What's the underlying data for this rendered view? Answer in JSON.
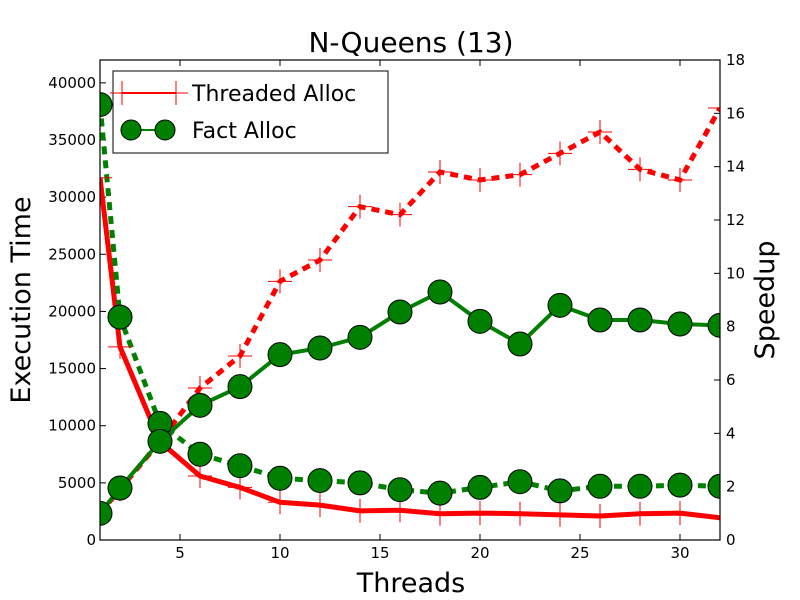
{
  "chart_data": {
    "type": "line",
    "title": "N-Queens (13)",
    "xlabel": "Threads",
    "ylabel_left": "Execution Time",
    "ylabel_right": "Speedup",
    "xlim": [
      1,
      32
    ],
    "ylim_left": [
      0,
      42000
    ],
    "ylim_right": [
      0,
      18
    ],
    "grid": false,
    "legend_position": "top-left",
    "x_ticks": [
      5,
      10,
      15,
      20,
      25,
      30
    ],
    "x_tick_labels": [
      "5",
      "10",
      "15",
      "20",
      "25",
      "30"
    ],
    "left_ticks": [
      0,
      5000,
      10000,
      15000,
      20000,
      25000,
      30000,
      35000,
      40000
    ],
    "left_tick_labels": [
      "0",
      "5000",
      "10000",
      "15000",
      "20000",
      "25000",
      "30000",
      "35000",
      "40000"
    ],
    "right_ticks": [
      0,
      2,
      4,
      6,
      8,
      10,
      12,
      14,
      16,
      18
    ],
    "right_tick_labels": [
      "0",
      "2",
      "4",
      "6",
      "8",
      "10",
      "12",
      "14",
      "16",
      "18"
    ],
    "x": [
      1,
      2,
      4,
      6,
      8,
      10,
      12,
      14,
      16,
      18,
      20,
      22,
      24,
      26,
      28,
      30,
      32
    ],
    "series": [
      {
        "name": "Threaded Alloc",
        "legend": true,
        "color": "#ff0000",
        "marker": "plus",
        "values_exec_time": [
          31700,
          16900,
          8600,
          5600,
          4600,
          3300,
          3050,
          2550,
          2600,
          2300,
          2350,
          2300,
          2200,
          2100,
          2300,
          2350,
          1950
        ],
        "values_speedup": [
          1.0,
          1.9,
          3.7,
          5.7,
          6.9,
          9.7,
          10.5,
          12.5,
          12.2,
          13.8,
          13.5,
          13.7,
          14.5,
          15.3,
          13.9,
          13.5,
          16.2
        ]
      },
      {
        "name": "Fact Alloc",
        "legend": true,
        "color": "#008000",
        "marker": "circle",
        "values_exec_time": [
          38100,
          19500,
          10200,
          7500,
          6500,
          5400,
          5200,
          5000,
          4400,
          4100,
          4600,
          5100,
          4300,
          4700,
          4700,
          4800,
          4700
        ],
        "values_speedup": [
          1.0,
          1.95,
          3.7,
          5.05,
          5.75,
          6.95,
          7.2,
          7.6,
          8.55,
          9.3,
          8.2,
          7.35,
          8.8,
          8.25,
          8.25,
          8.1,
          8.05
        ]
      }
    ]
  }
}
